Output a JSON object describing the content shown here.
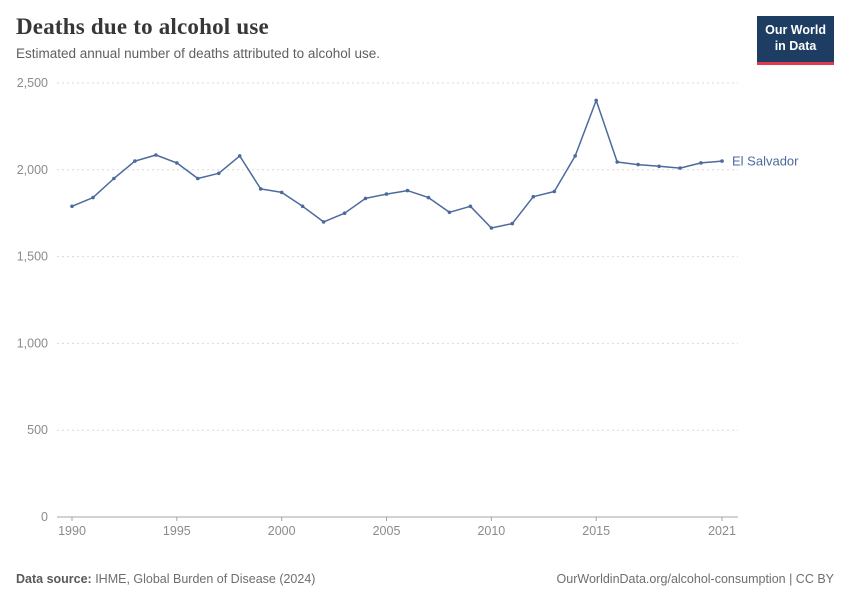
{
  "header": {
    "title": "Deaths due to alcohol use",
    "subtitle": "Estimated annual number of deaths attributed to alcohol use."
  },
  "logo": {
    "line1": "Our World",
    "line2": "in Data",
    "bg_color": "#1d3d63",
    "accent_color": "#e0394e",
    "text_color": "#ffffff"
  },
  "chart_data": {
    "type": "line",
    "title": "Deaths due to alcohol use",
    "subtitle": "Estimated annual number of deaths attributed to alcohol use.",
    "xlabel": "",
    "ylabel": "",
    "ylim": [
      0,
      2500
    ],
    "xlim": [
      1990,
      2021
    ],
    "grid": "horizontal-dashed",
    "legend_position": "end-of-line-label",
    "y_ticks": [
      {
        "v": 0,
        "label": "0"
      },
      {
        "v": 500,
        "label": "500"
      },
      {
        "v": 1000,
        "label": "1,000"
      },
      {
        "v": 1500,
        "label": "1,500"
      },
      {
        "v": 2000,
        "label": "2,000"
      },
      {
        "v": 2500,
        "label": "2,500"
      }
    ],
    "x_ticks": [
      {
        "v": 1990,
        "label": "1990"
      },
      {
        "v": 1995,
        "label": "1995"
      },
      {
        "v": 2000,
        "label": "2000"
      },
      {
        "v": 2005,
        "label": "2005"
      },
      {
        "v": 2010,
        "label": "2010"
      },
      {
        "v": 2015,
        "label": "2015"
      },
      {
        "v": 2021,
        "label": "2021"
      }
    ],
    "series": [
      {
        "name": "El Salvador",
        "color": "#4C6A9C",
        "x": [
          1990,
          1991,
          1992,
          1993,
          1994,
          1995,
          1996,
          1997,
          1998,
          1999,
          2000,
          2001,
          2002,
          2003,
          2004,
          2005,
          2006,
          2007,
          2008,
          2009,
          2010,
          2011,
          2012,
          2013,
          2014,
          2015,
          2016,
          2017,
          2018,
          2019,
          2020,
          2021
        ],
        "values": [
          1790,
          1840,
          1950,
          2050,
          2085,
          2040,
          1950,
          1980,
          2080,
          1890,
          1870,
          1790,
          1700,
          1750,
          1835,
          1860,
          1880,
          1840,
          1755,
          1790,
          1665,
          1690,
          1845,
          1875,
          2080,
          2400,
          2045,
          2030,
          2020,
          2010,
          2040,
          2050
        ]
      }
    ]
  },
  "footer": {
    "source_label": "Data source:",
    "source_text": " IHME, Global Burden of Disease (2024)",
    "credit": "OurWorldinData.org/alcohol-consumption | CC BY"
  }
}
